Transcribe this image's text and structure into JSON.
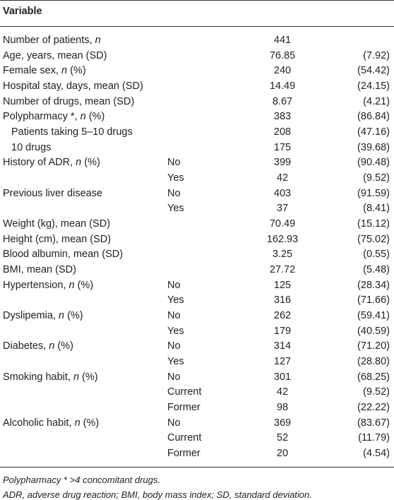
{
  "header": {
    "title": "Variable"
  },
  "table": {
    "rows": [
      [
        "Number of patients, n",
        null,
        "441",
        null
      ],
      [
        "Age, years, mean (SD)",
        null,
        "76.85",
        "(7.92)"
      ],
      [
        "Female sex, n (%)",
        null,
        "240",
        "(54.42)"
      ],
      [
        "Hospital stay, days, mean (SD)",
        null,
        "14.49",
        "(24.15)"
      ],
      [
        "Number of drugs, mean (SD)",
        null,
        "8.67",
        "(4.21)"
      ],
      [
        "Polypharmacy *, n (%)",
        null,
        "383",
        "(86.84)"
      ],
      [
        "Patients taking 5–10 drugs",
        null,
        "208",
        "(47.16)"
      ],
      [
        "10 drugs",
        null,
        "175",
        "(39.68)"
      ],
      [
        "History of ADR, n (%)",
        "No",
        "399",
        "(90.48)"
      ],
      [
        null,
        "Yes",
        "42",
        "(9.52)"
      ],
      [
        "Previous liver disease",
        "No",
        "403",
        "(91.59)"
      ],
      [
        null,
        "Yes",
        "37",
        "(8.41)"
      ],
      [
        "Weight (kg), mean (SD)",
        null,
        "70.49",
        "(15.12)"
      ],
      [
        "Height (cm), mean (SD)",
        null,
        "162.93",
        "(75.02)"
      ],
      [
        "Blood albumin, mean (SD)",
        null,
        "3.25",
        "(0.55)"
      ],
      [
        "BMI, mean (SD)",
        null,
        "27.72",
        "(5.48)"
      ],
      [
        "Hypertension, n (%)",
        "No",
        "125",
        "(28.34)"
      ],
      [
        null,
        "Yes",
        "316",
        "(71.66)"
      ],
      [
        "Dyslipemia, n (%)",
        "No",
        "262",
        "(59.41)"
      ],
      [
        null,
        "Yes",
        "179",
        "(40.59)"
      ],
      [
        "Diabetes, n (%)",
        "No",
        "314",
        "(71.20)"
      ],
      [
        null,
        "Yes",
        "127",
        "(28.80)"
      ],
      [
        "Smoking habit, n (%)",
        "No",
        "301",
        "(68.25)"
      ],
      [
        null,
        "Current",
        "42",
        "(9.52)"
      ],
      [
        null,
        "Former",
        "98",
        "(22.22)"
      ],
      [
        "Alcoholic habit, n (%)",
        "No",
        "369",
        "(83.67)"
      ],
      [
        null,
        "Current",
        "52",
        "(11.79)"
      ],
      [
        null,
        "Former",
        "20",
        "(4.54)"
      ]
    ]
  },
  "footnotes": [
    "Polypharmacy * >4 concomitant drugs.",
    "ADR, adverse drug reaction; BMI, body mass index; SD, standard deviation."
  ]
}
